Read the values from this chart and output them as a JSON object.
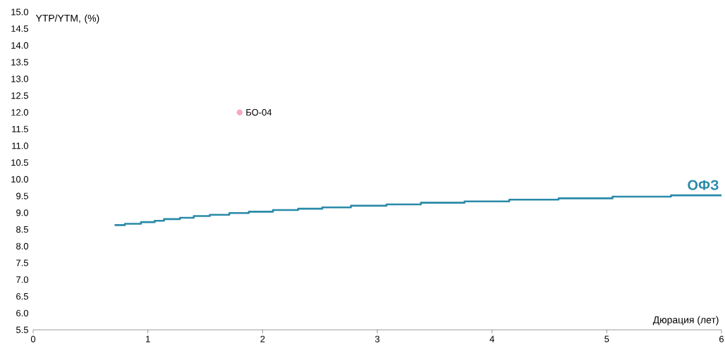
{
  "chart_data": {
    "type": "step",
    "ylabel": "YTP/YTM, (%)",
    "xlabel": "Дюрация (лет)",
    "xlim": [
      0,
      6
    ],
    "ylim": [
      5.5,
      15.0
    ],
    "xticks": [
      0,
      1,
      2,
      3,
      4,
      5,
      6
    ],
    "yticks": [
      {
        "value": 5.5,
        "label": "5.5"
      },
      {
        "value": 6,
        "label": "6.0"
      },
      {
        "value": 6.5,
        "label": "6.5"
      },
      {
        "value": 7,
        "label": "7.0"
      },
      {
        "value": 7.5,
        "label": "7.5"
      },
      {
        "value": 8,
        "label": "8.0"
      },
      {
        "value": 8.5,
        "label": "8.5"
      },
      {
        "value": 9,
        "label": "9.0"
      },
      {
        "value": 9.5,
        "label": "9.5"
      },
      {
        "value": 10,
        "label": "10.0"
      },
      {
        "value": 10.5,
        "label": "10.5"
      },
      {
        "value": 11,
        "label": "11.0"
      },
      {
        "value": 11.5,
        "label": "11.5"
      },
      {
        "value": 12,
        "label": "12.0"
      },
      {
        "value": 12.5,
        "label": "12.5"
      },
      {
        "value": 13,
        "label": "13.0"
      },
      {
        "value": 13.5,
        "label": "13.5"
      },
      {
        "value": 14,
        "label": "14.0"
      },
      {
        "value": 14.5,
        "label": "14.5"
      },
      {
        "value": 15,
        "label": "15.0"
      }
    ],
    "series": [
      {
        "name": "ОФЗ",
        "color": "#2a8aa8",
        "x": [
          0.71,
          0.8,
          0.94,
          1.06,
          1.14,
          1.28,
          1.4,
          1.54,
          1.71,
          1.88,
          2.09,
          2.31,
          2.52,
          2.77,
          3.08,
          3.38,
          3.76,
          4.15,
          4.58,
          5.05,
          5.56,
          6.0
        ],
        "values": [
          8.63,
          8.67,
          8.72,
          8.76,
          8.81,
          8.85,
          8.9,
          8.94,
          8.99,
          9.03,
          9.08,
          9.12,
          9.16,
          9.21,
          9.25,
          9.3,
          9.34,
          9.39,
          9.43,
          9.48,
          9.52,
          9.52
        ]
      },
      {
        "name": "БО-04",
        "type": "scatter",
        "color": "#f4a6c8",
        "marker": "circle",
        "x": [
          1.8
        ],
        "values": [
          12.0
        ]
      }
    ]
  }
}
